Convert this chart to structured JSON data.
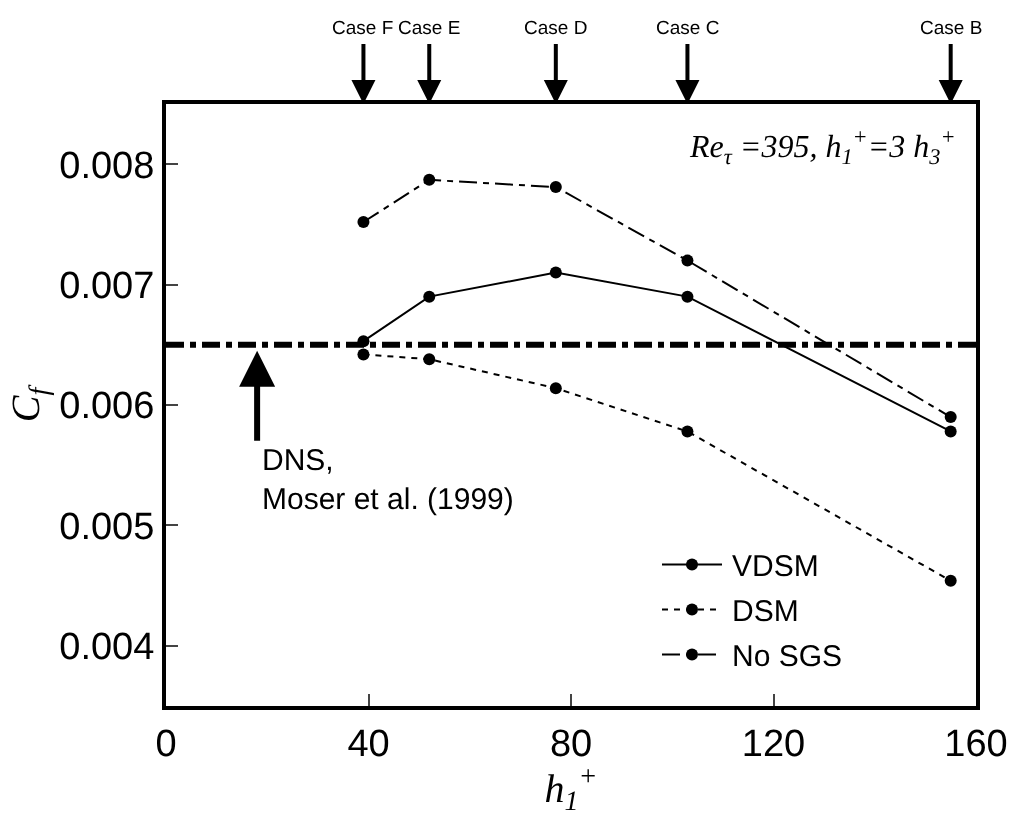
{
  "chart_data": {
    "type": "line",
    "xlabel": "h$_{1}$$^{+}$",
    "ylabel": "C$_{f}$",
    "x": [
      39,
      52,
      77,
      103,
      155
    ],
    "series": [
      {
        "name": "VDSM",
        "color": "#000000",
        "line_style": "solid",
        "values": [
          0.00653,
          0.0069,
          0.0071,
          0.0069,
          0.00578
        ]
      },
      {
        "name": "DSM",
        "color": "#000000",
        "line_style": "dotted",
        "values": [
          0.00642,
          0.00638,
          0.00614,
          0.00578,
          0.00454
        ]
      },
      {
        "name": "No SGS",
        "color": "#000000",
        "line_style": "dashdot",
        "values": [
          0.00752,
          0.00787,
          0.00781,
          0.0072,
          0.0059
        ]
      }
    ],
    "marker": "circle",
    "xlim": [
      0,
      160
    ],
    "xticks": [
      0,
      40,
      80,
      120,
      160
    ],
    "ylim": [
      0.0035,
      0.0085
    ],
    "yticks": [
      0.004,
      0.005,
      0.006,
      0.007,
      0.008
    ],
    "ref_lines": [
      {
        "axis": "y",
        "value": 0.0065,
        "color": "#000000",
        "line_style": "dashdot"
      }
    ],
    "annotations": [
      {
        "text": "DNS,\nMoser et al. (1999)",
        "x": 18,
        "y": 0.0065
      },
      {
        "text": "Case F",
        "x": 39
      },
      {
        "text": "Case E",
        "x": 52
      },
      {
        "text": "Case D",
        "x": 77
      },
      {
        "text": "Case C",
        "x": 103
      },
      {
        "text": "Case B",
        "x": 155
      },
      "Re$_{τ}$ =395, h$_{1}$$^{+}$=3 h$_{3}$$^{+}$"
    ],
    "legend": "bottom right"
  }
}
